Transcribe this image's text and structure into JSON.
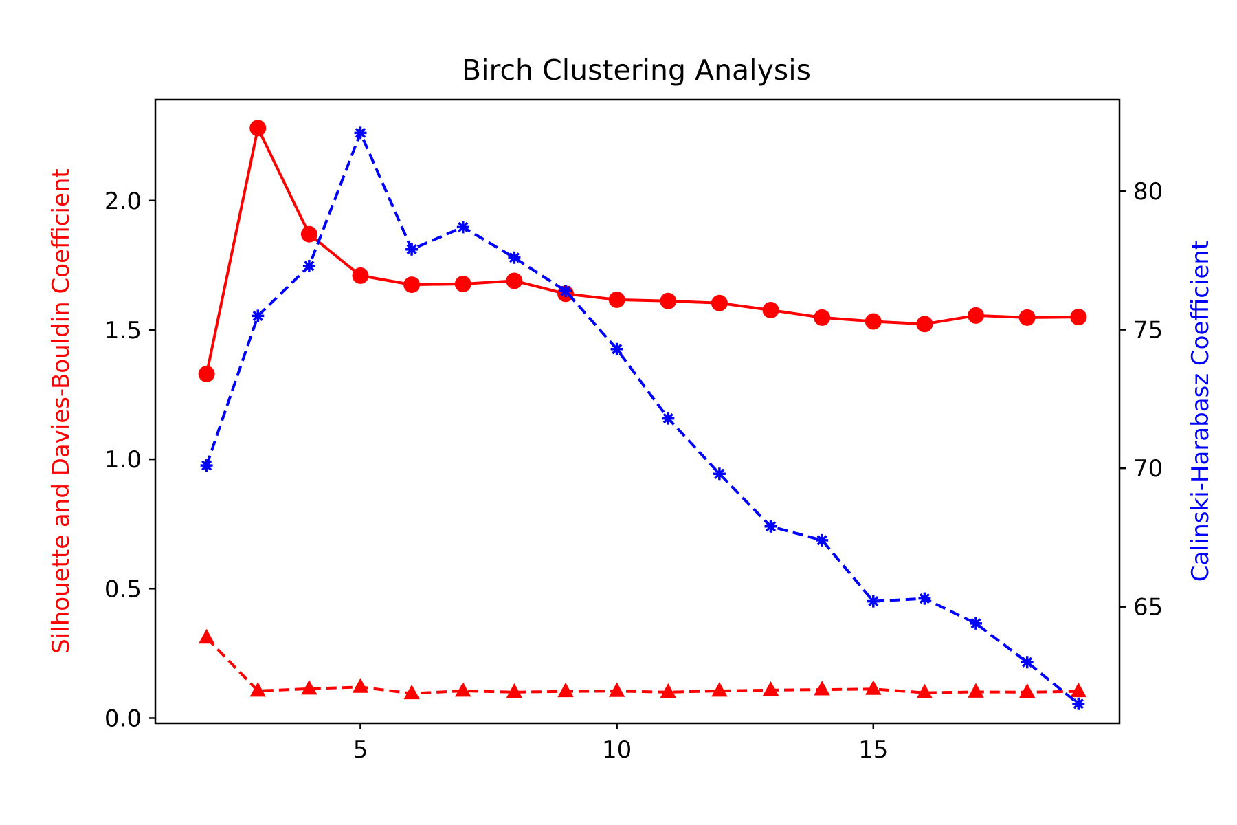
{
  "chart_data": {
    "type": "line",
    "title": "Birch Clustering Analysis",
    "xlabel": "",
    "ylabel_left": "Silhouette and Davies-Bouldin Coefficient",
    "ylabel_right": "Calinski-Harabasz Coefficient",
    "x": [
      2,
      3,
      4,
      5,
      6,
      7,
      8,
      9,
      10,
      11,
      12,
      13,
      14,
      15,
      16,
      17,
      18,
      19
    ],
    "xlim": [
      1.0,
      19.8
    ],
    "x_ticks": [
      5,
      10,
      15
    ],
    "ylim_left": [
      -0.02,
      2.39
    ],
    "y_ticks_left": [
      0.0,
      0.5,
      1.0,
      1.5,
      2.0
    ],
    "ylim_right": [
      60.8,
      83.3
    ],
    "y_ticks_right": [
      65,
      70,
      75,
      80
    ],
    "grid": false,
    "colors": {
      "left_axis": "#ff0000",
      "right_axis": "#0000ff"
    },
    "series": [
      {
        "axis": "left",
        "color": "#ff0000",
        "line_style": "solid",
        "marker": "circle",
        "values": [
          1.33,
          2.28,
          1.87,
          1.71,
          1.675,
          1.678,
          1.69,
          1.64,
          1.617,
          1.612,
          1.604,
          1.577,
          1.548,
          1.533,
          1.523,
          1.556,
          1.548,
          1.55
        ]
      },
      {
        "axis": "left",
        "color": "#ff0000",
        "line_style": "dashed",
        "marker": "triangle",
        "values": [
          0.31,
          0.105,
          0.113,
          0.12,
          0.095,
          0.105,
          0.1,
          0.103,
          0.104,
          0.1,
          0.105,
          0.108,
          0.11,
          0.112,
          0.098,
          0.101,
          0.1,
          0.103
        ]
      },
      {
        "axis": "right",
        "color": "#0000ff",
        "line_style": "dashed",
        "marker": "asterisk",
        "values": [
          70.1,
          75.5,
          77.3,
          82.1,
          77.9,
          78.7,
          77.6,
          76.4,
          74.3,
          71.8,
          69.8,
          67.9,
          67.4,
          65.2,
          65.3,
          64.4,
          63.0,
          61.5
        ]
      }
    ]
  }
}
